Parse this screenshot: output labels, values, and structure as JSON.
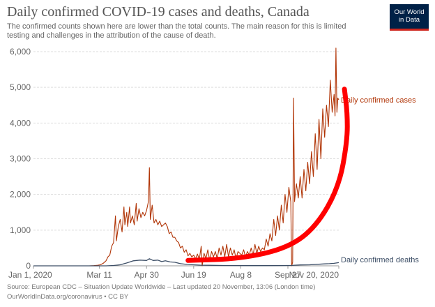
{
  "header": {
    "title": "Daily confirmed COVID-19 cases and deaths, Canada",
    "subtitle": "The confirmed counts shown here are lower than the total counts. The main reason for this is limited testing and challenges in the attribution of the cause of death."
  },
  "logo": {
    "line1": "Our World",
    "line2": "in Data"
  },
  "footer": {
    "source": "Source: European CDC – Situation Update Worldwide – Last updated 20 November, 13:06 (London time)",
    "credit": "OurWorldInData.org/coronavirus • CC BY"
  },
  "colors": {
    "cases": "#b13507",
    "deaths": "#3c4e66",
    "annotation": "#ff0000",
    "grid": "#dddddd",
    "text": "#666666"
  },
  "chart_data": {
    "type": "line",
    "x_axis": {
      "start": "2020-01-01",
      "end": "2020-11-20",
      "ticks": [
        {
          "date": "2020-01-01",
          "label": "Jan 1, 2020"
        },
        {
          "date": "2020-03-11",
          "label": "Mar 11"
        },
        {
          "date": "2020-04-30",
          "label": "Apr 30"
        },
        {
          "date": "2020-06-19",
          "label": "Jun 19"
        },
        {
          "date": "2020-08-08",
          "label": "Aug 8"
        },
        {
          "date": "2020-09-27",
          "label": "Sep 27"
        },
        {
          "date": "2020-11-20",
          "label": "Nov 20, 2020"
        }
      ]
    },
    "y_axis": {
      "ylim": [
        0,
        6000
      ],
      "ticks": [
        0,
        1000,
        2000,
        3000,
        4000,
        5000,
        6000
      ],
      "tick_labels": [
        "0",
        "1,000",
        "2,000",
        "3,000",
        "4,000",
        "5,000",
        "6,000"
      ]
    },
    "grid": "horizontal dashed",
    "series": [
      {
        "name": "Daily confirmed cases",
        "color": "#b13507",
        "points": [
          [
            "2020-01-01",
            0
          ],
          [
            "2020-02-29",
            0
          ],
          [
            "2020-03-05",
            5
          ],
          [
            "2020-03-09",
            15
          ],
          [
            "2020-03-12",
            30
          ],
          [
            "2020-03-15",
            70
          ],
          [
            "2020-03-18",
            140
          ],
          [
            "2020-03-20",
            250
          ],
          [
            "2020-03-22",
            300
          ],
          [
            "2020-03-24",
            550
          ],
          [
            "2020-03-26",
            650
          ],
          [
            "2020-03-28",
            1400
          ],
          [
            "2020-03-29",
            700
          ],
          [
            "2020-03-31",
            1100
          ],
          [
            "2020-04-02",
            1300
          ],
          [
            "2020-04-04",
            950
          ],
          [
            "2020-04-06",
            1650
          ],
          [
            "2020-04-07",
            1150
          ],
          [
            "2020-04-09",
            1500
          ],
          [
            "2020-04-10",
            1100
          ],
          [
            "2020-04-12",
            1650
          ],
          [
            "2020-04-13",
            1200
          ],
          [
            "2020-04-15",
            1400
          ],
          [
            "2020-04-17",
            1150
          ],
          [
            "2020-04-19",
            1750
          ],
          [
            "2020-04-20",
            1250
          ],
          [
            "2020-04-22",
            1600
          ],
          [
            "2020-04-24",
            1350
          ],
          [
            "2020-04-26",
            1500
          ],
          [
            "2020-04-28",
            1400
          ],
          [
            "2020-04-30",
            1550
          ],
          [
            "2020-05-02",
            1800
          ],
          [
            "2020-05-03",
            2750
          ],
          [
            "2020-05-04",
            1300
          ],
          [
            "2020-05-06",
            1700
          ],
          [
            "2020-05-08",
            1200
          ],
          [
            "2020-05-10",
            1300
          ],
          [
            "2020-05-12",
            1150
          ],
          [
            "2020-05-14",
            1250
          ],
          [
            "2020-05-16",
            1100
          ],
          [
            "2020-05-18",
            1150
          ],
          [
            "2020-05-20",
            1200
          ],
          [
            "2020-05-22",
            1100
          ],
          [
            "2020-05-24",
            900
          ],
          [
            "2020-05-26",
            950
          ],
          [
            "2020-05-28",
            800
          ],
          [
            "2020-05-30",
            800
          ],
          [
            "2020-06-01",
            700
          ],
          [
            "2020-06-03",
            650
          ],
          [
            "2020-06-05",
            500
          ],
          [
            "2020-06-07",
            550
          ],
          [
            "2020-06-09",
            380
          ],
          [
            "2020-06-11",
            450
          ],
          [
            "2020-06-13",
            280
          ],
          [
            "2020-06-15",
            350
          ],
          [
            "2020-06-17",
            250
          ],
          [
            "2020-06-19",
            300
          ],
          [
            "2020-06-21",
            200
          ],
          [
            "2020-06-23",
            330
          ],
          [
            "2020-06-25",
            180
          ],
          [
            "2020-06-27",
            550
          ],
          [
            "2020-06-28",
            0
          ],
          [
            "2020-06-30",
            350
          ],
          [
            "2020-07-02",
            200
          ],
          [
            "2020-07-04",
            450
          ],
          [
            "2020-07-06",
            150
          ],
          [
            "2020-07-08",
            400
          ],
          [
            "2020-07-10",
            250
          ],
          [
            "2020-07-12",
            400
          ],
          [
            "2020-07-14",
            200
          ],
          [
            "2020-07-16",
            500
          ],
          [
            "2020-07-18",
            300
          ],
          [
            "2020-07-20",
            550
          ],
          [
            "2020-07-22",
            250
          ],
          [
            "2020-07-24",
            600
          ],
          [
            "2020-07-26",
            250
          ],
          [
            "2020-07-28",
            500
          ],
          [
            "2020-07-30",
            300
          ],
          [
            "2020-08-01",
            450
          ],
          [
            "2020-08-03",
            200
          ],
          [
            "2020-08-05",
            400
          ],
          [
            "2020-08-07",
            350
          ],
          [
            "2020-08-09",
            300
          ],
          [
            "2020-08-11",
            450
          ],
          [
            "2020-08-13",
            250
          ],
          [
            "2020-08-15",
            400
          ],
          [
            "2020-08-17",
            300
          ],
          [
            "2020-08-19",
            500
          ],
          [
            "2020-08-21",
            300
          ],
          [
            "2020-08-23",
            600
          ],
          [
            "2020-08-25",
            350
          ],
          [
            "2020-08-27",
            550
          ],
          [
            "2020-08-29",
            400
          ],
          [
            "2020-08-31",
            500
          ],
          [
            "2020-09-02",
            450
          ],
          [
            "2020-09-04",
            750
          ],
          [
            "2020-09-06",
            550
          ],
          [
            "2020-09-08",
            900
          ],
          [
            "2020-09-10",
            700
          ],
          [
            "2020-09-12",
            1300
          ],
          [
            "2020-09-14",
            850
          ],
          [
            "2020-09-16",
            1400
          ],
          [
            "2020-09-18",
            1000
          ],
          [
            "2020-09-20",
            1700
          ],
          [
            "2020-09-22",
            1200
          ],
          [
            "2020-09-24",
            2000
          ],
          [
            "2020-09-26",
            1500
          ],
          [
            "2020-09-28",
            2200
          ],
          [
            "2020-09-30",
            1800
          ],
          [
            "2020-10-01",
            0
          ],
          [
            "2020-10-02",
            100
          ],
          [
            "2020-10-03",
            4700
          ],
          [
            "2020-10-04",
            1800
          ],
          [
            "2020-10-06",
            2300
          ],
          [
            "2020-10-08",
            1900
          ],
          [
            "2020-10-10",
            2500
          ],
          [
            "2020-10-12",
            1900
          ],
          [
            "2020-10-14",
            2700
          ],
          [
            "2020-10-16",
            2100
          ],
          [
            "2020-10-18",
            2900
          ],
          [
            "2020-10-20",
            2300
          ],
          [
            "2020-10-22",
            3200
          ],
          [
            "2020-10-24",
            2500
          ],
          [
            "2020-10-26",
            3700
          ],
          [
            "2020-10-28",
            2700
          ],
          [
            "2020-10-30",
            4100
          ],
          [
            "2020-11-01",
            3000
          ],
          [
            "2020-11-03",
            4400
          ],
          [
            "2020-11-05",
            3600
          ],
          [
            "2020-11-07",
            4500
          ],
          [
            "2020-11-09",
            3900
          ],
          [
            "2020-11-11",
            5200
          ],
          [
            "2020-11-13",
            4300
          ],
          [
            "2020-11-15",
            4800
          ],
          [
            "2020-11-16",
            4200
          ],
          [
            "2020-11-17",
            6100
          ],
          [
            "2020-11-18",
            4300
          ],
          [
            "2020-11-19",
            4700
          ],
          [
            "2020-11-20",
            4650
          ]
        ]
      },
      {
        "name": "Daily confirmed deaths",
        "color": "#3c4e66",
        "points": [
          [
            "2020-01-01",
            0
          ],
          [
            "2020-03-18",
            0
          ],
          [
            "2020-03-26",
            10
          ],
          [
            "2020-04-02",
            30
          ],
          [
            "2020-04-09",
            80
          ],
          [
            "2020-04-16",
            140
          ],
          [
            "2020-04-23",
            160
          ],
          [
            "2020-04-30",
            150
          ],
          [
            "2020-05-03",
            200
          ],
          [
            "2020-05-07",
            150
          ],
          [
            "2020-05-12",
            160
          ],
          [
            "2020-05-16",
            120
          ],
          [
            "2020-05-20",
            140
          ],
          [
            "2020-05-25",
            110
          ],
          [
            "2020-05-30",
            100
          ],
          [
            "2020-06-05",
            60
          ],
          [
            "2020-06-12",
            40
          ],
          [
            "2020-06-19",
            30
          ],
          [
            "2020-06-26",
            20
          ],
          [
            "2020-07-05",
            15
          ],
          [
            "2020-07-20",
            10
          ],
          [
            "2020-08-05",
            8
          ],
          [
            "2020-08-20",
            6
          ],
          [
            "2020-09-05",
            5
          ],
          [
            "2020-09-20",
            8
          ],
          [
            "2020-10-01",
            12
          ],
          [
            "2020-10-10",
            25
          ],
          [
            "2020-10-20",
            30
          ],
          [
            "2020-10-30",
            45
          ],
          [
            "2020-11-05",
            55
          ],
          [
            "2020-11-10",
            60
          ],
          [
            "2020-11-15",
            70
          ],
          [
            "2020-11-20",
            90
          ]
        ]
      }
    ],
    "labels": [
      {
        "series": 0,
        "text": "Daily confirmed cases"
      },
      {
        "series": 1,
        "text": "Daily confirmed deaths"
      }
    ],
    "annotation": {
      "shape": "curved hand-drawn arrow-like stroke",
      "points": [
        [
          "2020-06-13",
          150
        ],
        [
          "2020-08-08",
          200
        ],
        [
          "2020-09-27",
          500
        ],
        [
          "2020-10-27",
          1100
        ],
        [
          "2020-11-20",
          2200
        ],
        [
          "2020-11-29",
          3500
        ],
        [
          "2020-11-29",
          4300
        ],
        [
          "2020-11-26",
          4950
        ]
      ]
    }
  }
}
